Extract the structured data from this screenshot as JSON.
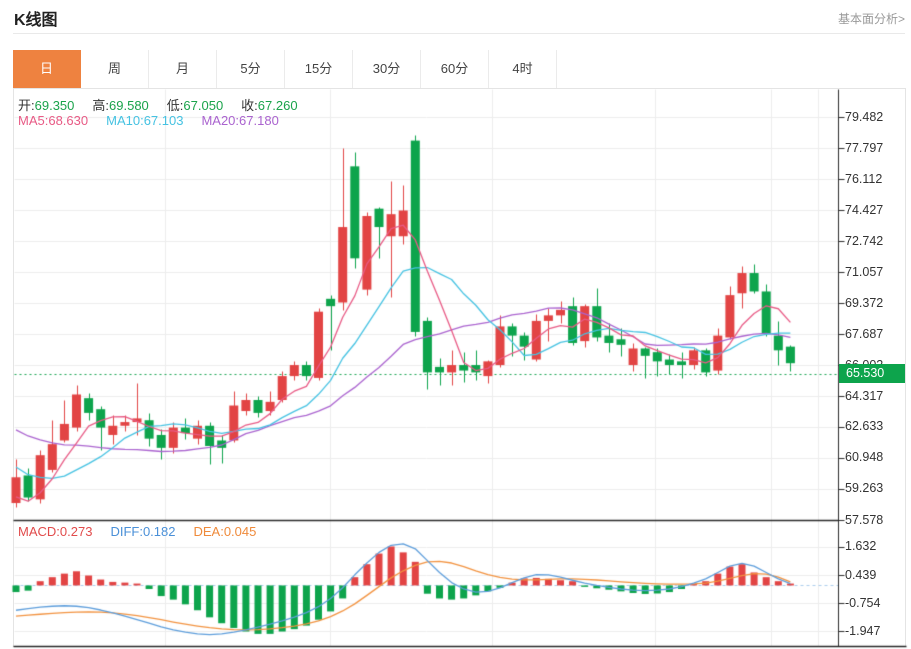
{
  "header": {
    "title": "K线图",
    "link": "基本面分析>"
  },
  "tabs": {
    "active_index": 0,
    "items": [
      "日",
      "周",
      "月",
      "5分",
      "15分",
      "30分",
      "60分",
      "4时"
    ]
  },
  "legend": {
    "ohlc": [
      {
        "label": "开:",
        "value": "69.350"
      },
      {
        "label": "高:",
        "value": "69.580"
      },
      {
        "label": "低:",
        "value": "67.050"
      },
      {
        "label": "收:",
        "value": "67.260"
      }
    ],
    "ma": [
      {
        "label": "MA5:",
        "value": "68.630",
        "color": "#e85a85"
      },
      {
        "label": "MA10:",
        "value": "67.103",
        "color": "#45c2e2"
      },
      {
        "label": "MA20:",
        "value": "67.180",
        "color": "#aa63cf"
      }
    ],
    "macd": [
      {
        "label": "MACD:",
        "value": "0.273",
        "color": "#e14b4b"
      },
      {
        "label": "DIFF:",
        "value": "0.182",
        "color": "#4a90d8"
      },
      {
        "label": "DEA:",
        "value": "0.045",
        "color": "#ef8a3a"
      }
    ]
  },
  "colors": {
    "up": "#e24444",
    "down": "#0da44c",
    "badge_bg": "#0da44c",
    "value_green": "#1aa34b",
    "ma5": "#e85a85",
    "ma10": "#45c2e2",
    "ma20": "#aa63cf",
    "diff_line": "#5c9ddb",
    "dea_line": "#f2923f",
    "grid": "#ededed",
    "axis_dark": "#2b2b2b",
    "dotted_price_line": "#18a452",
    "macd_zero_dash": "#abcdec",
    "tab_active_bg": "#ee8240"
  },
  "chart_data": {
    "type": "candlestick",
    "panels": [
      "price",
      "macd"
    ],
    "price_axis": {
      "labels": [
        "79.482",
        "77.797",
        "76.112",
        "74.427",
        "72.742",
        "71.057",
        "69.372",
        "67.687",
        "66.002",
        "64.317",
        "62.633",
        "60.948",
        "59.263",
        "57.578"
      ],
      "top_value": 79.482,
      "bottom_value": 57.578
    },
    "last_price": {
      "text": "65.530",
      "value": 65.53
    },
    "candles": {
      "open": [
        58.5,
        60.0,
        58.7,
        60.3,
        61.9,
        62.6,
        64.2,
        63.6,
        62.2,
        62.7,
        62.9,
        63.0,
        62.2,
        61.5,
        62.6,
        62.0,
        62.7,
        61.9,
        61.9,
        63.5,
        64.1,
        63.5,
        64.1,
        65.4,
        66.0,
        65.3,
        69.6,
        69.4,
        76.8,
        70.1,
        74.5,
        73.0,
        73.0,
        78.2,
        68.4,
        65.9,
        65.6,
        66.0,
        66.0,
        65.4,
        66.0,
        68.1,
        67.6,
        66.3,
        68.4,
        68.7,
        69.2,
        67.3,
        69.2,
        67.6,
        67.4,
        66.0,
        66.9,
        66.7,
        66.3,
        66.2,
        66.0,
        66.8,
        65.7,
        67.5,
        69.9,
        71.0,
        70.0,
        67.6,
        67.0
      ],
      "close": [
        59.9,
        58.8,
        61.1,
        61.7,
        62.8,
        64.4,
        63.4,
        62.6,
        62.7,
        62.9,
        63.1,
        62.0,
        61.5,
        62.6,
        62.3,
        62.7,
        61.6,
        61.5,
        63.8,
        64.1,
        63.4,
        64.0,
        65.4,
        66.0,
        65.4,
        68.9,
        69.2,
        73.5,
        71.8,
        74.1,
        73.5,
        74.2,
        74.4,
        67.8,
        65.6,
        65.6,
        66.0,
        65.7,
        65.6,
        66.2,
        68.1,
        67.6,
        67.0,
        68.4,
        68.7,
        69.0,
        67.2,
        69.2,
        67.5,
        67.2,
        67.1,
        66.9,
        66.5,
        66.2,
        66.0,
        66.0,
        66.8,
        65.6,
        67.6,
        69.8,
        71.0,
        70.0,
        67.7,
        66.8,
        66.1
      ],
      "high": [
        60.9,
        60.4,
        61.4,
        63.0,
        64.1,
        64.9,
        64.5,
        63.8,
        63.3,
        63.3,
        65.0,
        63.4,
        62.5,
        62.9,
        63.1,
        63.0,
        62.9,
        62.2,
        64.6,
        64.5,
        64.3,
        64.6,
        65.7,
        66.2,
        66.2,
        69.1,
        69.8,
        77.8,
        77.6,
        74.3,
        74.6,
        76.0,
        75.8,
        78.5,
        68.6,
        66.4,
        66.8,
        66.7,
        66.8,
        66.3,
        68.7,
        68.3,
        67.8,
        68.8,
        69.1,
        69.5,
        69.7,
        69.3,
        70.2,
        68.3,
        68.0,
        67.2,
        67.0,
        66.9,
        66.6,
        66.7,
        67.0,
        66.9,
        68.0,
        70.3,
        71.4,
        71.5,
        70.4,
        68.4,
        67.1
      ],
      "low": [
        58.3,
        58.6,
        58.5,
        60.2,
        61.8,
        62.4,
        63.0,
        61.4,
        61.7,
        62.4,
        62.2,
        61.6,
        60.9,
        61.2,
        62.0,
        61.7,
        60.6,
        60.7,
        61.8,
        63.3,
        63.2,
        63.3,
        64.0,
        65.2,
        65.2,
        65.2,
        66.8,
        69.0,
        71.3,
        69.8,
        71.8,
        69.7,
        72.6,
        67.6,
        64.7,
        64.9,
        64.9,
        65.1,
        65.2,
        65.0,
        65.9,
        66.5,
        66.3,
        66.2,
        67.3,
        68.3,
        67.1,
        67.0,
        67.3,
        66.7,
        66.5,
        65.7,
        65.3,
        65.4,
        65.5,
        65.3,
        65.8,
        65.4,
        65.5,
        67.4,
        69.1,
        69.9,
        67.6,
        66.0,
        65.7
      ]
    },
    "prehistory_closes": [
      65.5,
      65.3,
      65.1,
      64.9,
      64.7,
      64.5,
      64.2,
      63.9,
      63.6,
      63.3,
      63.0,
      62.6,
      62.2,
      61.6,
      61.0,
      60.0,
      58.8,
      57.9,
      57.6
    ],
    "moving_averages": {
      "periods": [
        5,
        10,
        20
      ]
    },
    "macd": {
      "axis_labels": [
        "1.632",
        "0.439",
        "-0.754",
        "-1.947"
      ],
      "top_value": 1.632,
      "bottom_value": -1.947,
      "histogram": [
        -0.28,
        -0.22,
        0.18,
        0.35,
        0.5,
        0.6,
        0.42,
        0.25,
        0.15,
        0.12,
        0.08,
        -0.15,
        -0.45,
        -0.6,
        -0.8,
        -1.05,
        -1.35,
        -1.6,
        -1.8,
        -1.95,
        -2.05,
        -2.05,
        -1.95,
        -1.85,
        -1.7,
        -1.45,
        -1.1,
        -0.55,
        0.35,
        0.9,
        1.35,
        1.65,
        1.4,
        1.0,
        -0.35,
        -0.55,
        -0.6,
        -0.55,
        -0.42,
        -0.25,
        -0.1,
        0.12,
        0.3,
        0.32,
        0.28,
        0.22,
        0.18,
        -0.06,
        -0.12,
        -0.18,
        -0.25,
        -0.32,
        -0.36,
        -0.34,
        -0.28,
        -0.15,
        0.06,
        0.18,
        0.5,
        0.8,
        0.9,
        0.55,
        0.35,
        0.18,
        0.08
      ],
      "diff": [
        -1.05,
        -0.98,
        -0.92,
        -0.88,
        -0.86,
        -0.88,
        -0.94,
        -1.04,
        -1.16,
        -1.3,
        -1.45,
        -1.6,
        -1.75,
        -1.88,
        -1.98,
        -2.05,
        -2.08,
        -2.05,
        -1.98,
        -1.88,
        -1.76,
        -1.64,
        -1.5,
        -1.34,
        -1.15,
        -0.9,
        -0.55,
        -0.1,
        0.45,
        0.95,
        1.4,
        1.7,
        1.76,
        1.55,
        1.05,
        0.55,
        0.12,
        -0.15,
        -0.28,
        -0.25,
        -0.1,
        0.12,
        0.32,
        0.46,
        0.45,
        0.35,
        0.22,
        0.1,
        0.0,
        -0.08,
        -0.15,
        -0.2,
        -0.22,
        -0.2,
        -0.15,
        -0.05,
        0.1,
        0.28,
        0.55,
        0.82,
        0.93,
        0.82,
        0.55,
        0.28,
        0.08
      ],
      "dea": [
        -1.3,
        -1.26,
        -1.22,
        -1.18,
        -1.15,
        -1.13,
        -1.12,
        -1.13,
        -1.16,
        -1.21,
        -1.28,
        -1.36,
        -1.45,
        -1.55,
        -1.64,
        -1.72,
        -1.79,
        -1.84,
        -1.87,
        -1.88,
        -1.87,
        -1.84,
        -1.79,
        -1.72,
        -1.63,
        -1.5,
        -1.32,
        -1.08,
        -0.78,
        -0.42,
        -0.05,
        0.32,
        0.62,
        0.85,
        1.0,
        1.02,
        0.95,
        0.8,
        0.62,
        0.46,
        0.34,
        0.27,
        0.24,
        0.24,
        0.26,
        0.28,
        0.28,
        0.26,
        0.23,
        0.19,
        0.15,
        0.12,
        0.09,
        0.07,
        0.06,
        0.06,
        0.07,
        0.1,
        0.18,
        0.3,
        0.42,
        0.5,
        0.48,
        0.35,
        0.15
      ]
    }
  }
}
